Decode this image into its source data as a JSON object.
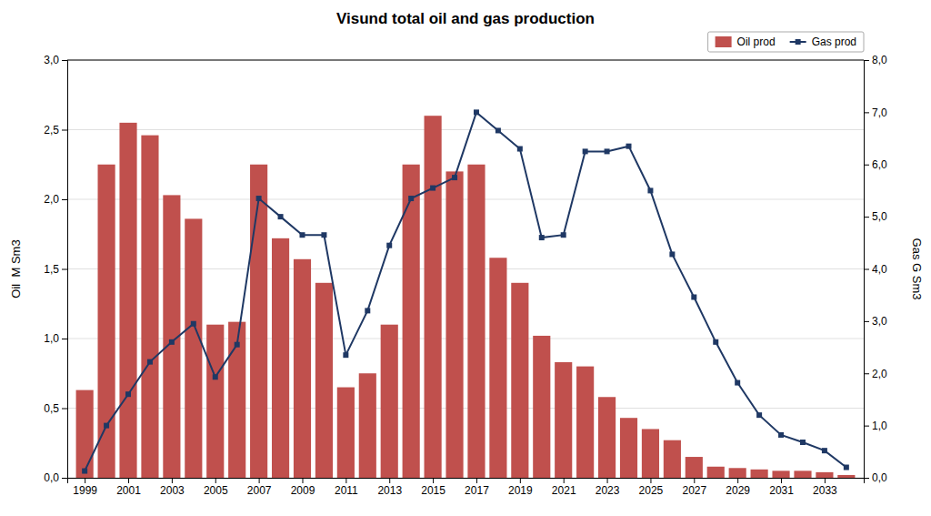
{
  "chart_data": {
    "type": "bar",
    "title": "Visund total oil and gas production",
    "ylabel": "Oil  M Sm3",
    "y2label": "Gas G Sm3",
    "x": [
      1999,
      2000,
      2001,
      2002,
      2003,
      2004,
      2005,
      2006,
      2007,
      2008,
      2009,
      2010,
      2011,
      2012,
      2013,
      2014,
      2015,
      2016,
      2017,
      2018,
      2019,
      2020,
      2021,
      2022,
      2023,
      2024,
      2025,
      2026,
      2027,
      2028,
      2029,
      2030,
      2031,
      2032,
      2033,
      2034
    ],
    "series": [
      {
        "name": "Oil prod",
        "type": "bar",
        "color": "#c0504d",
        "values": [
          0.63,
          2.25,
          2.55,
          2.46,
          2.03,
          1.86,
          1.1,
          1.12,
          2.25,
          1.72,
          1.57,
          1.4,
          0.65,
          0.75,
          1.1,
          2.25,
          2.6,
          2.2,
          2.25,
          1.58,
          1.4,
          1.02,
          0.83,
          0.8,
          0.58,
          0.43,
          0.35,
          0.27,
          0.15,
          0.08,
          0.07,
          0.06,
          0.05,
          0.05,
          0.04,
          0.02
        ]
      },
      {
        "name": "Gas prod",
        "type": "line",
        "color": "#1f3864",
        "marker": "square",
        "axis": "y2",
        "values": [
          0.13,
          1.0,
          1.6,
          2.22,
          2.6,
          2.95,
          1.93,
          2.55,
          5.35,
          5.0,
          4.65,
          4.65,
          2.35,
          3.2,
          4.45,
          5.35,
          5.55,
          5.75,
          7.0,
          6.65,
          6.3,
          4.6,
          4.65,
          6.25,
          6.25,
          6.35,
          5.5,
          4.28,
          3.46,
          2.6,
          1.82,
          1.2,
          0.82,
          0.68,
          0.52,
          0.2
        ]
      }
    ],
    "xlim": [
      1998.2,
      2034.8
    ],
    "xticks": [
      1999,
      2001,
      2003,
      2005,
      2007,
      2009,
      2011,
      2013,
      2015,
      2017,
      2019,
      2021,
      2023,
      2025,
      2027,
      2029,
      2031,
      2033
    ],
    "ylim": [
      0,
      3.0
    ],
    "yticks": [
      {
        "value": 0.0,
        "label": "0,0"
      },
      {
        "value": 0.5,
        "label": "0,5"
      },
      {
        "value": 1.0,
        "label": "1,0"
      },
      {
        "value": 1.5,
        "label": "1,5"
      },
      {
        "value": 2.0,
        "label": "2,0"
      },
      {
        "value": 2.5,
        "label": "2,5"
      },
      {
        "value": 3.0,
        "label": "3,0"
      }
    ],
    "y2lim": [
      0,
      8.0
    ],
    "y2ticks": [
      {
        "value": 0.0,
        "label": "0,0"
      },
      {
        "value": 1.0,
        "label": "1,0"
      },
      {
        "value": 2.0,
        "label": "2,0"
      },
      {
        "value": 3.0,
        "label": "3,0"
      },
      {
        "value": 4.0,
        "label": "4,0"
      },
      {
        "value": 5.0,
        "label": "5,0"
      },
      {
        "value": 6.0,
        "label": "6,0"
      },
      {
        "value": 7.0,
        "label": "7,0"
      },
      {
        "value": 8.0,
        "label": "8,0"
      }
    ],
    "grid": true,
    "legend": "upper right"
  }
}
